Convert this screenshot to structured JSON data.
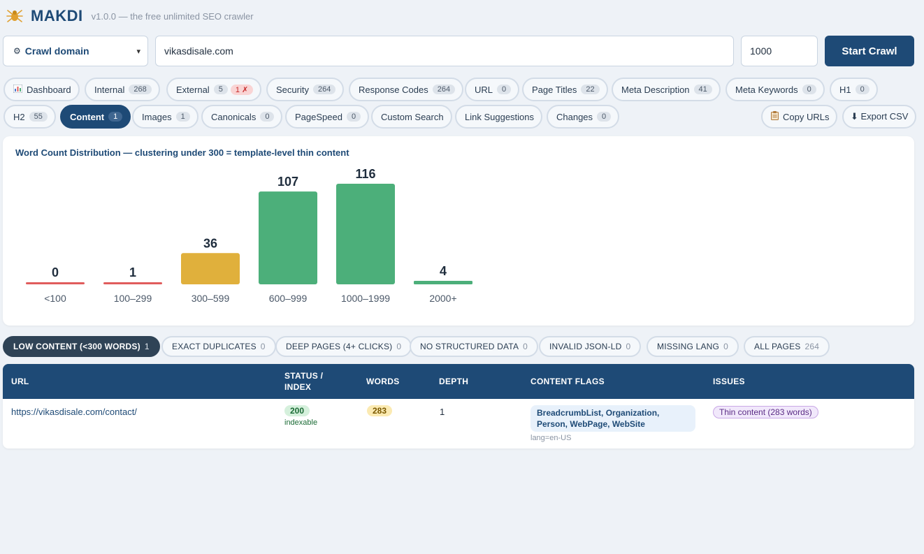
{
  "app": {
    "name": "MAKDI",
    "version_text": "v1.0.0 — the free unlimited SEO crawler",
    "accent_color": "#1e4a76"
  },
  "controls": {
    "mode_icon": "gear-icon",
    "mode_label": "Crawl domain",
    "url_value": "vikasdisale.com",
    "limit_value": "1000",
    "start_label": "Start Crawl"
  },
  "tabs": [
    {
      "label": "Dashboard",
      "icon": "bar-chart-icon"
    },
    {
      "label": "Internal",
      "count": "268"
    },
    {
      "label": "External",
      "count": "5",
      "error_count": "1 ✗"
    },
    {
      "label": "Security",
      "count": "264"
    },
    {
      "label": "Response Codes",
      "count": "264"
    },
    {
      "label": "URL",
      "count": "0"
    },
    {
      "label": "Page Titles",
      "count": "22"
    },
    {
      "label": "Meta Description",
      "count": "41"
    },
    {
      "label": "Meta Keywords",
      "count": "0"
    },
    {
      "label": "H1",
      "count": "0"
    },
    {
      "label": "H2",
      "count": "55"
    },
    {
      "label": "Content",
      "count": "1",
      "active": true
    },
    {
      "label": "Images",
      "count": "1"
    },
    {
      "label": "Canonicals",
      "count": "0"
    },
    {
      "label": "PageSpeed",
      "count": "0"
    },
    {
      "label": "Custom Search"
    },
    {
      "label": "Link Suggestions"
    },
    {
      "label": "Changes",
      "count": "0"
    }
  ],
  "actions": {
    "copy_label": "Copy URLs",
    "export_label": "⬇ Export CSV"
  },
  "chart_data": {
    "type": "bar",
    "title": "Word Count Distribution — clustering under 300 = template-level thin content",
    "categories": [
      "<100",
      "100–299",
      "300–599",
      "600–999",
      "1000–1999",
      "2000+"
    ],
    "values": [
      0,
      1,
      36,
      107,
      116,
      4
    ],
    "colors": [
      "#e05c5c",
      "#e05c5c",
      "#e0b03c",
      "#4caf7a",
      "#4caf7a",
      "#4caf7a"
    ],
    "grid": false,
    "xlabel": "",
    "ylabel": ""
  },
  "filters": [
    {
      "label": "LOW CONTENT (<300 WORDS)",
      "count": "1",
      "active": true
    },
    {
      "label": "EXACT DUPLICATES",
      "count": "0"
    },
    {
      "label": "DEEP PAGES (4+ CLICKS)",
      "count": "0"
    },
    {
      "label": "NO STRUCTURED DATA",
      "count": "0"
    },
    {
      "label": "INVALID JSON-LD",
      "count": "0"
    },
    {
      "label": "MISSING LANG",
      "count": "0"
    },
    {
      "label": "ALL PAGES",
      "count": "264"
    }
  ],
  "table": {
    "headers": [
      "URL",
      "STATUS / INDEX",
      "WORDS",
      "DEPTH",
      "CONTENT FLAGS",
      "ISSUES"
    ],
    "header_status_line1": "STATUS /",
    "header_status_line2": "INDEX",
    "rows": [
      {
        "url": "https://vikasdisale.com/contact/",
        "status": "200",
        "index": "indexable",
        "words": "283",
        "depth": "1",
        "flags": "BreadcrumbList, Organization, Person, WebPage, WebSite",
        "lang": "lang=en-US",
        "issue": "Thin content (283 words)"
      }
    ]
  }
}
